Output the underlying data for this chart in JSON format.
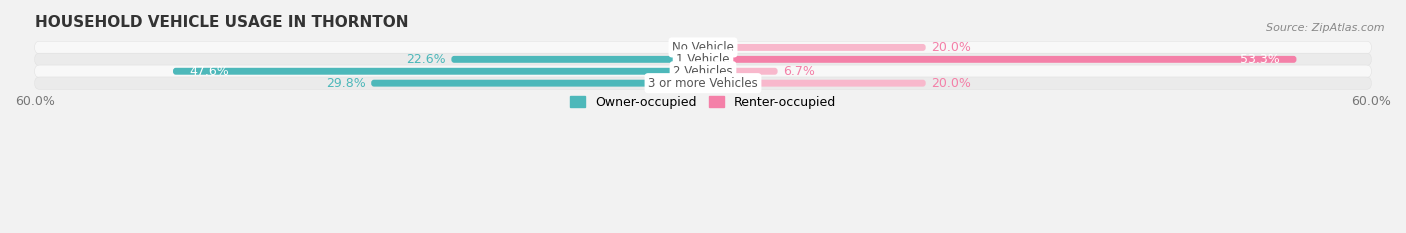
{
  "title": "HOUSEHOLD VEHICLE USAGE IN THORNTON",
  "source": "Source: ZipAtlas.com",
  "categories": [
    "No Vehicle",
    "1 Vehicle",
    "2 Vehicles",
    "3 or more Vehicles"
  ],
  "owner_values": [
    0.0,
    22.6,
    47.6,
    29.8
  ],
  "renter_values": [
    20.0,
    53.3,
    6.7,
    20.0
  ],
  "owner_color": "#4db8ba",
  "renter_color": "#f480a8",
  "renter_light_color": "#f8b8cc",
  "owner_light_color": "#a0d8d8",
  "category_label_color": "#555555",
  "xlim": [
    -60,
    60
  ],
  "bar_height": 0.58,
  "bg_color": "#f2f2f2",
  "row_light": "#f8f8f8",
  "row_dark": "#ebebeb",
  "title_fontsize": 11,
  "source_fontsize": 8,
  "label_fontsize": 9,
  "category_fontsize": 8.5,
  "legend_fontsize": 9,
  "axis_fontsize": 9
}
